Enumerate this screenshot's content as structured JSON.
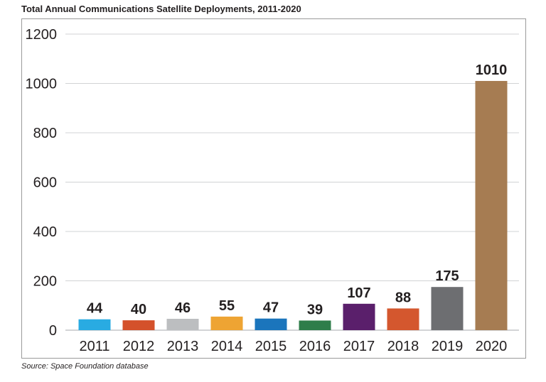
{
  "chart_data": {
    "type": "bar",
    "title": "Total Annual Communications Satellite Deployments, 2011-2020",
    "categories": [
      "2011",
      "2012",
      "2013",
      "2014",
      "2015",
      "2016",
      "2017",
      "2018",
      "2019",
      "2020"
    ],
    "values": [
      44,
      40,
      46,
      55,
      47,
      39,
      107,
      88,
      175,
      1010
    ],
    "bar_colors": [
      "#29abe2",
      "#d4512b",
      "#bcbec0",
      "#eea433",
      "#1b75bc",
      "#2e7d4a",
      "#5a1f6b",
      "#d4572e",
      "#6d6e71",
      "#a67c52"
    ],
    "xlabel": "",
    "ylabel": "",
    "ylim": [
      0,
      1200
    ],
    "yticks": [
      0,
      200,
      400,
      600,
      800,
      1000,
      1200
    ],
    "grid": true,
    "legend": "none",
    "source": "Source: Space Foundation database"
  }
}
